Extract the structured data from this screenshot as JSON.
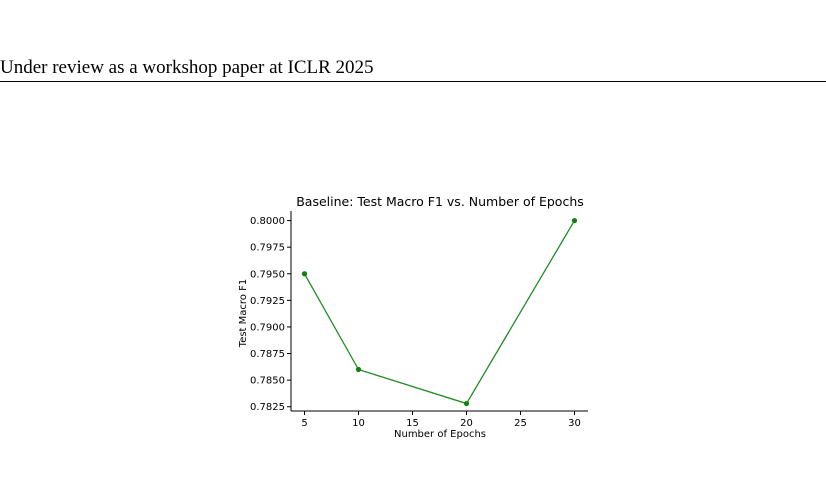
{
  "header": {
    "running_title": "Under review as a workshop paper at ICLR 2025"
  },
  "chart_data": {
    "type": "line",
    "title": "Baseline: Test Macro F1 vs. Number of Epochs",
    "xlabel": "Number of Epochs",
    "ylabel": "Test Macro F1",
    "x": [
      5,
      10,
      20,
      30
    ],
    "series": [
      {
        "values": [
          0.795,
          0.786,
          0.7828,
          0.8
        ]
      }
    ],
    "xlim": [
      3.75,
      31.25
    ],
    "ylim": [
      0.7821,
      0.8009
    ],
    "xticks": [
      5,
      10,
      15,
      20,
      25,
      30
    ],
    "xtick_labels": [
      "5",
      "10",
      "15",
      "20",
      "25",
      "30"
    ],
    "yticks": [
      0.7825,
      0.785,
      0.7875,
      0.79,
      0.7925,
      0.795,
      0.7975,
      0.8
    ],
    "ytick_labels": [
      "0.7825",
      "0.7850",
      "0.7875",
      "0.7900",
      "0.7925",
      "0.7950",
      "0.7975",
      "0.8000"
    ],
    "grid": false,
    "colors": {
      "line": "#1f8c1f",
      "marker": "#118011",
      "axis": "#000000"
    }
  }
}
